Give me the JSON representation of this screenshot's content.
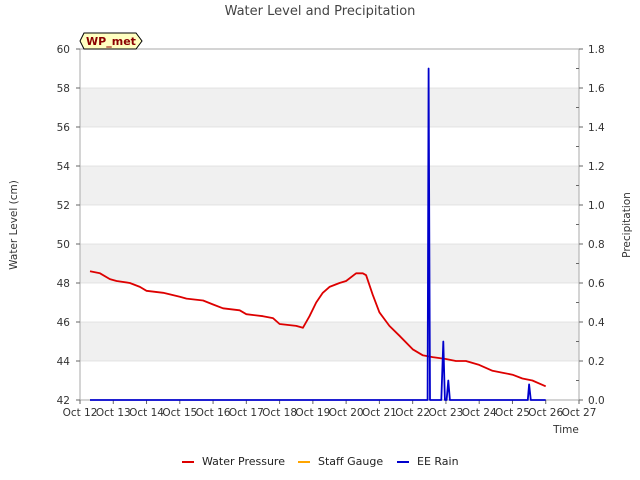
{
  "chart_data": {
    "type": "line",
    "title": "Water Level and Precipitation",
    "xlabel": "Time",
    "ylabel_left": "Water Level (cm)",
    "ylabel_right": "Precipitation",
    "badge": "WP_met",
    "x_ticks": [
      "Oct 12",
      "Oct 13",
      "Oct 14",
      "Oct 15",
      "Oct 16",
      "Oct 17",
      "Oct 18",
      "Oct 19",
      "Oct 20",
      "Oct 21",
      "Oct 22",
      "Oct 23",
      "Oct 24",
      "Oct 25",
      "Oct 26",
      "Oct 27"
    ],
    "xlim_days": [
      12,
      27
    ],
    "ylim_left": [
      42,
      60
    ],
    "yticks_left": [
      42,
      44,
      46,
      48,
      50,
      52,
      54,
      56,
      58,
      60
    ],
    "ylim_right": [
      0,
      1.8
    ],
    "yticks_right": [
      0.0,
      0.2,
      0.4,
      0.6,
      0.8,
      1.0,
      1.2,
      1.4,
      1.6,
      1.8
    ],
    "grid": "horizontal bands",
    "legend_position": "bottom",
    "series": [
      {
        "name": "Water Pressure",
        "axis": "left",
        "color": "#dd0000",
        "x_days": [
          12.3,
          12.6,
          12.9,
          13.1,
          13.5,
          13.8,
          14.0,
          14.5,
          15.0,
          15.2,
          15.7,
          16.0,
          16.3,
          16.8,
          17.0,
          17.5,
          17.8,
          18.0,
          18.5,
          18.7,
          18.9,
          19.1,
          19.3,
          19.5,
          19.8,
          20.0,
          20.3,
          20.5,
          20.6,
          20.8,
          21.0,
          21.3,
          21.6,
          22.0,
          22.3,
          22.6,
          23.0,
          23.3,
          23.6,
          24.0,
          24.4,
          24.7,
          25.0,
          25.3,
          25.6,
          26.0
        ],
        "values": [
          48.6,
          48.5,
          48.2,
          48.1,
          48.0,
          47.8,
          47.6,
          47.5,
          47.3,
          47.2,
          47.1,
          46.9,
          46.7,
          46.6,
          46.4,
          46.3,
          46.2,
          45.9,
          45.8,
          45.7,
          46.3,
          47.0,
          47.5,
          47.8,
          48.0,
          48.1,
          48.5,
          48.5,
          48.4,
          47.4,
          46.5,
          45.8,
          45.3,
          44.6,
          44.3,
          44.2,
          44.1,
          44.0,
          44.0,
          43.8,
          43.5,
          43.4,
          43.3,
          43.1,
          43.0,
          42.7
        ]
      },
      {
        "name": "Staff Gauge",
        "axis": "left",
        "color": "#ffa500",
        "x_days": [],
        "values": []
      },
      {
        "name": "EE Rain",
        "axis": "right",
        "color": "#0000cc",
        "x_days": [
          12.3,
          22.45,
          22.48,
          22.52,
          22.56,
          22.6,
          22.86,
          22.92,
          22.97,
          23.02,
          23.07,
          23.12,
          23.16,
          25.46,
          25.5,
          25.55,
          26.0
        ],
        "values": [
          0.0,
          0.0,
          1.7,
          0.0,
          0.0,
          0.0,
          0.0,
          0.3,
          0.0,
          0.0,
          0.1,
          0.0,
          0.0,
          0.0,
          0.08,
          0.0,
          0.0
        ]
      }
    ]
  },
  "colors": {
    "band": "#f0f0f0",
    "grid": "#dddddd",
    "axis": "#aaaaaa",
    "badge_bg": "#ffffc0"
  }
}
